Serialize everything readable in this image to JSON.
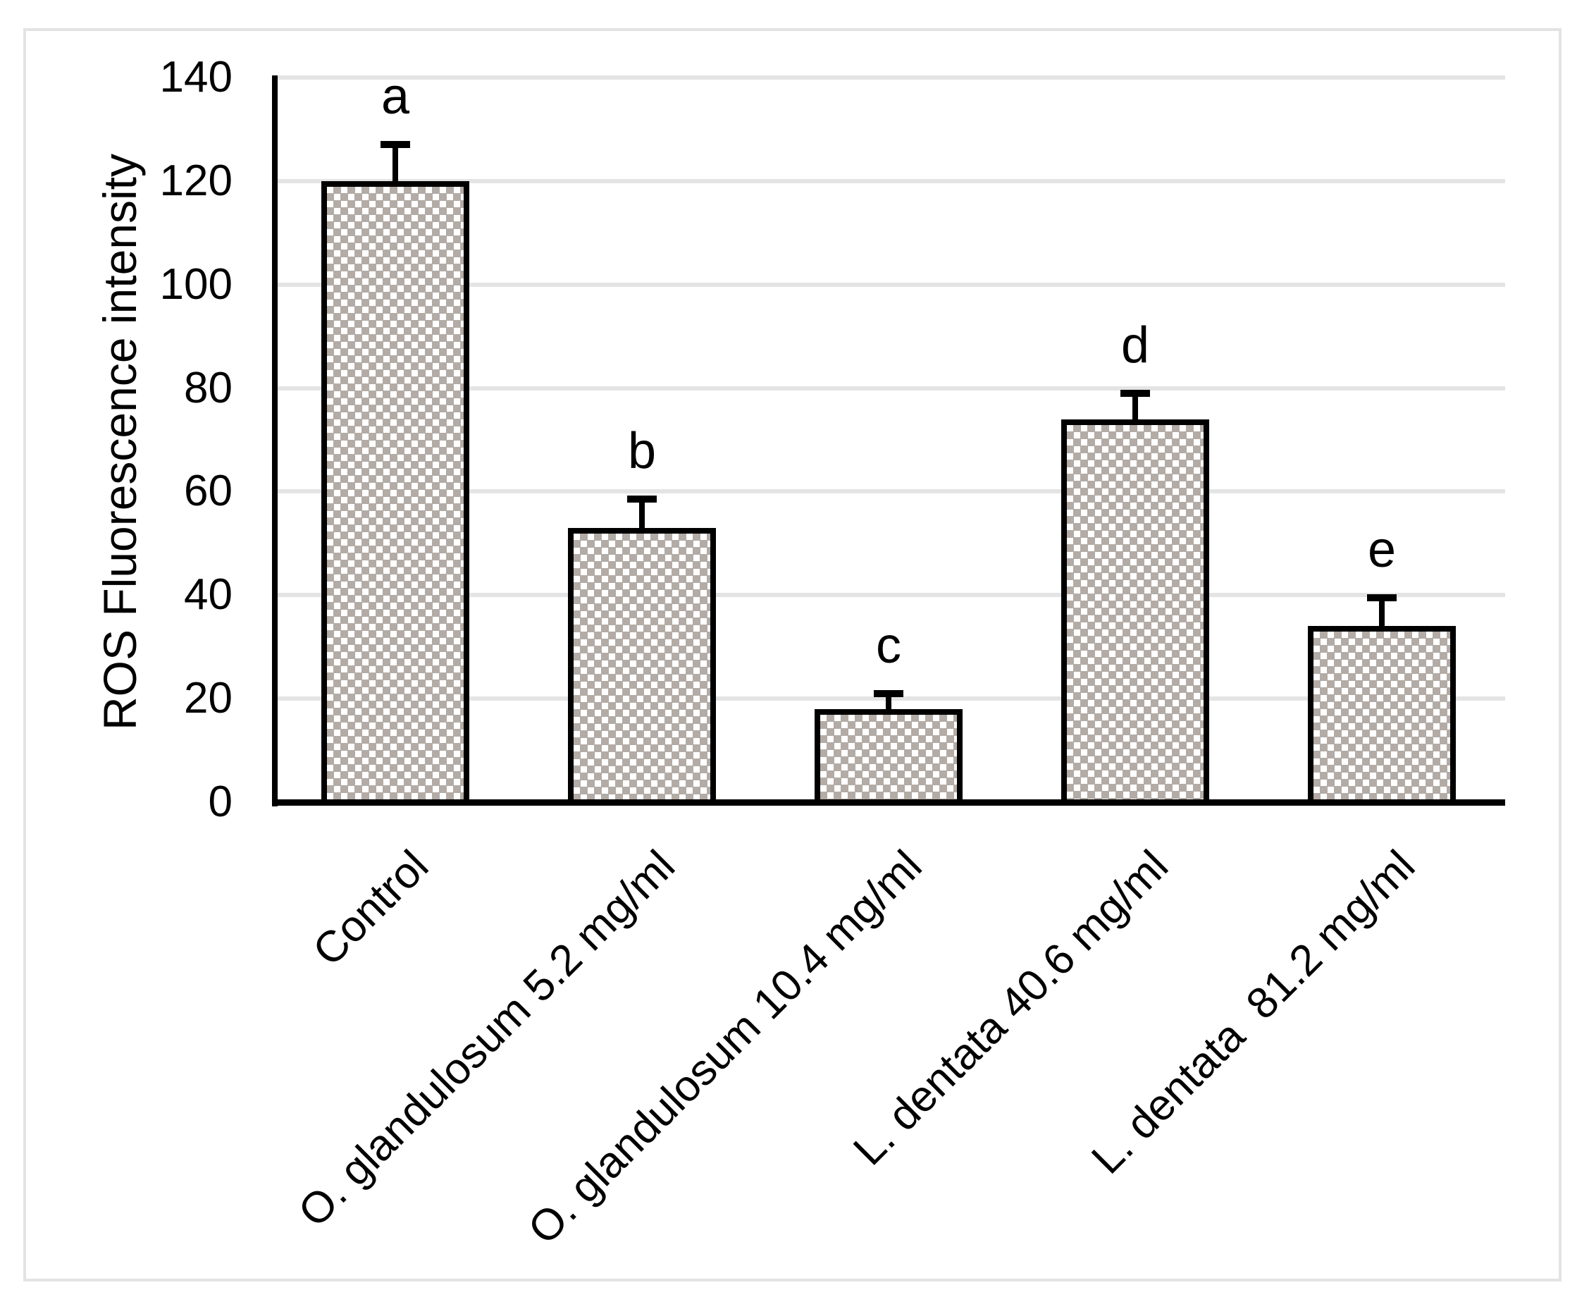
{
  "chart_data": {
    "type": "bar",
    "title": "",
    "xlabel": "",
    "ylabel": "ROS Fluorescence intensity",
    "ylim": [
      0,
      140
    ],
    "yticks": [
      0,
      20,
      40,
      60,
      80,
      100,
      120,
      140
    ],
    "grid": "horizontal",
    "legend_position": "none",
    "categories": [
      "Control",
      "O. glandulosum 5.2 mg/ml",
      "O. glandulosum 10.4 mg/ml",
      "L. dentata 40.6 mg/ml",
      "L. dentata  81.2 mg/ml"
    ],
    "values": [
      120,
      53,
      18,
      74,
      34
    ],
    "error_up": [
      7,
      5.5,
      3,
      5,
      5.5
    ],
    "significance_letters": [
      "a",
      "b",
      "c",
      "d",
      "e"
    ],
    "bar_pattern": "small-checkerboard",
    "colors": {
      "bar_pattern_gray": "#b3aba5",
      "bar_pattern_white": "#ffffff",
      "bar_border": "#000000",
      "gridline": "#e4e4e4",
      "axis_line": "#000000",
      "figure_border": "#e3e3e3",
      "text": "#000000",
      "background": "#ffffff"
    }
  }
}
